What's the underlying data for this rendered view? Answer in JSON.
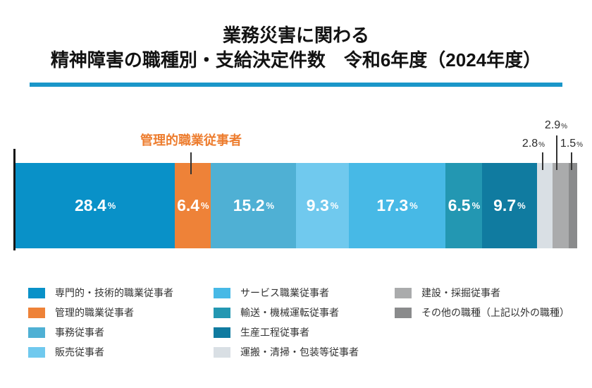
{
  "title": {
    "line1": "業務災害に関わる",
    "line2": "精神障害の職種別・支給決定件数　令和6年度（2024年度）"
  },
  "chart_data": {
    "type": "bar",
    "subtype": "horizontal-stacked-100percent",
    "title": "業務災害に関わる精神障害の職種別・支給決定件数　令和6年度（2024年度）",
    "unit": "%",
    "total": 100.0,
    "legend_position": "bottom",
    "accent_rule_color": "#1a96c9",
    "segments": [
      {
        "label": "専門的・技術的職業従事者",
        "value": 28.4,
        "value_label": "28.4",
        "color": "#0991c8",
        "label_inside": true
      },
      {
        "label": "管理的職業従事者",
        "value": 6.4,
        "value_label": "6.4",
        "color": "#ee8238",
        "label_inside": true,
        "callout": true
      },
      {
        "label": "事務従事者",
        "value": 15.2,
        "value_label": "15.2",
        "color": "#4fb0d4",
        "label_inside": true
      },
      {
        "label": "販売従事者",
        "value": 9.3,
        "value_label": "9.3",
        "color": "#70c9ee",
        "label_inside": true
      },
      {
        "label": "サービス職業従事者",
        "value": 17.3,
        "value_label": "17.3",
        "color": "#47b9e6",
        "label_inside": true
      },
      {
        "label": "輸送・機械運転従事者",
        "value": 6.5,
        "value_label": "6.5",
        "color": "#2397b2",
        "label_inside": true
      },
      {
        "label": "生産工程従事者",
        "value": 9.7,
        "value_label": "9.7",
        "color": "#107ba0",
        "label_inside": true
      },
      {
        "label": "運搬・清掃・包装等従事者",
        "value": 2.8,
        "value_label": "2.8",
        "color": "#d9dfe4",
        "label_inside": false
      },
      {
        "label": "建設・採掘従事者",
        "value": 2.9,
        "value_label": "2.9",
        "color": "#aaabac",
        "label_inside": false
      },
      {
        "label": "その他の職種（上記以外の職種）",
        "value": 1.5,
        "value_label": "1.5",
        "color": "#8a8b8c",
        "label_inside": false
      }
    ],
    "legend_columns": [
      [
        0,
        1,
        2,
        3
      ],
      [
        4,
        5,
        6,
        7
      ],
      [
        8,
        9
      ]
    ]
  }
}
